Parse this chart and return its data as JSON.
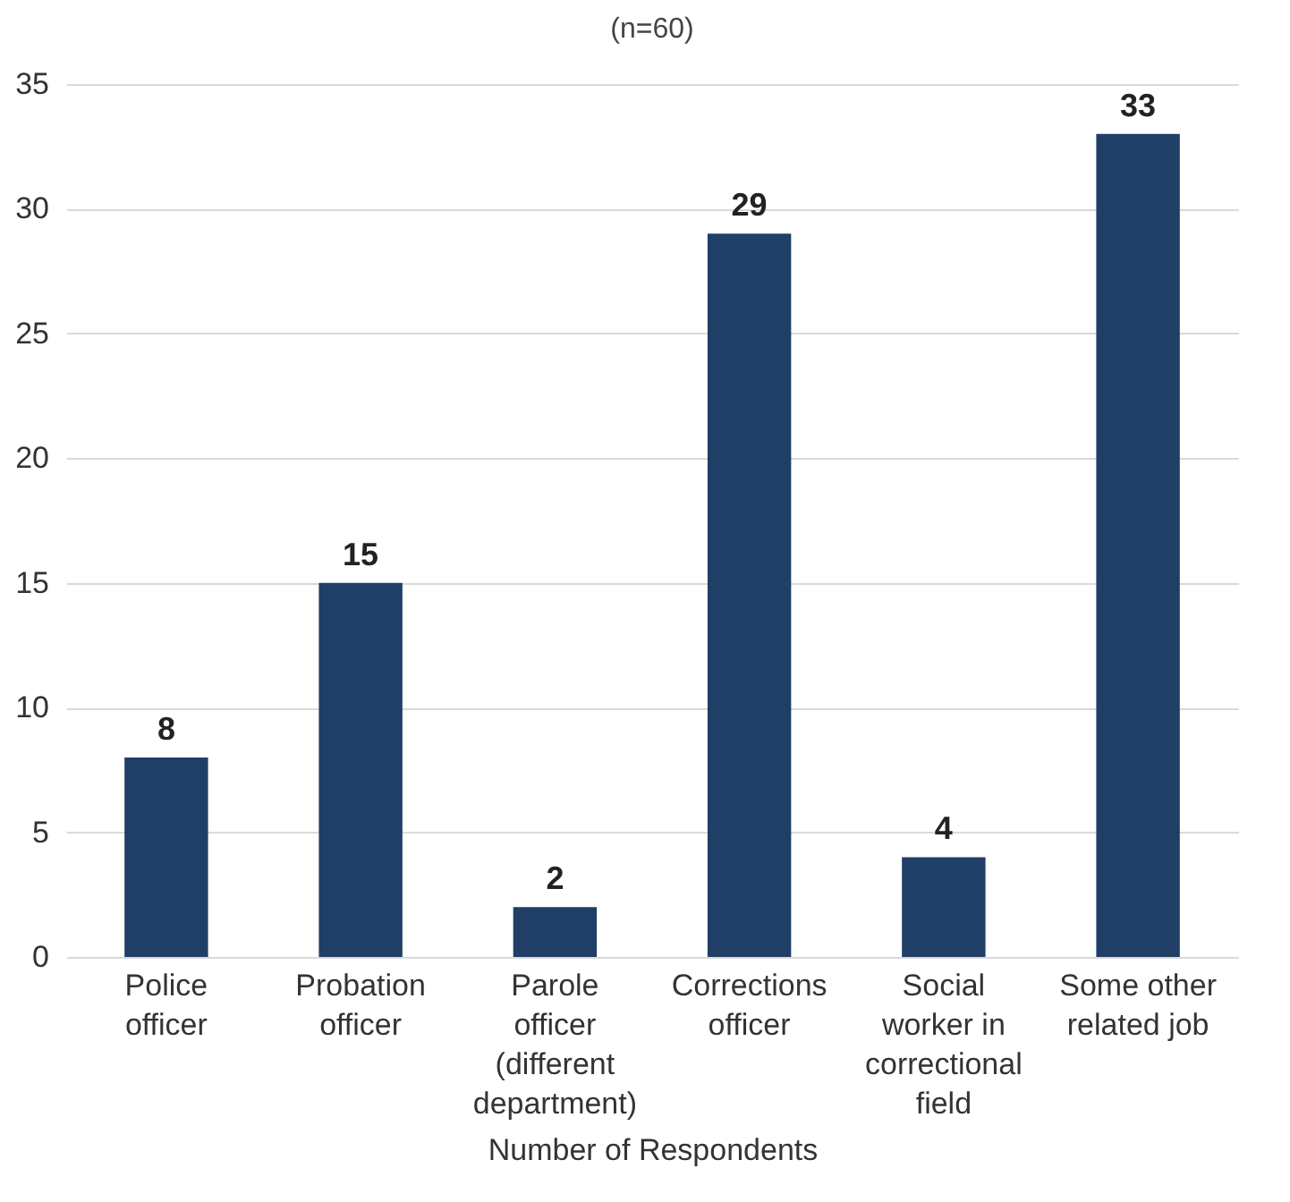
{
  "chart_data": {
    "type": "bar",
    "title": "(n=60)",
    "xlabel": "Number of Respondents",
    "categories": [
      "Police officer",
      "Probation officer",
      "Parole officer (different department)",
      "Corrections officer",
      "Social worker in correctional field",
      "Some other related job"
    ],
    "values": [
      8,
      15,
      2,
      29,
      4,
      33
    ],
    "color": "#1f3f66",
    "ylim": [
      0,
      35
    ],
    "yticks": [
      0,
      5,
      10,
      15,
      20,
      25,
      30,
      35
    ],
    "grid": "y",
    "data_labels": true
  }
}
